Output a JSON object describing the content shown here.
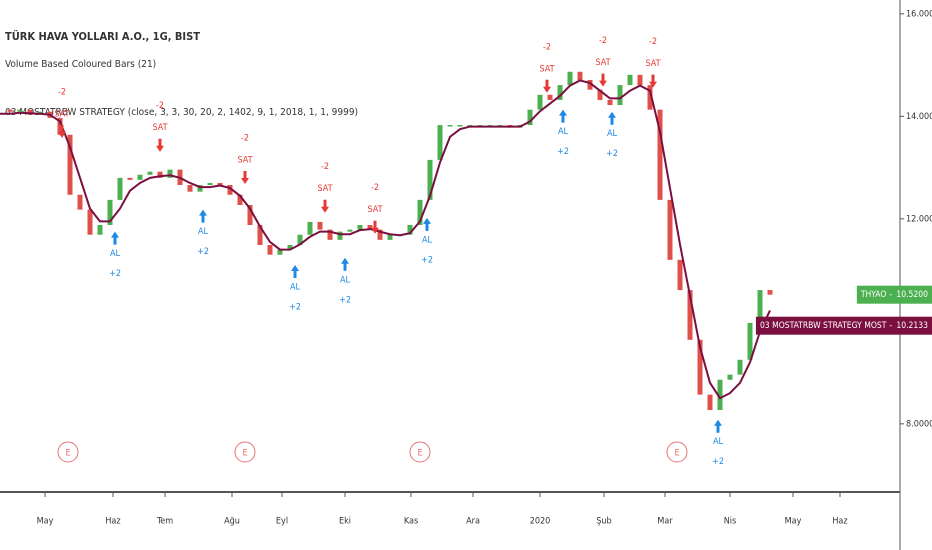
{
  "chart_data": {
    "type": "candlestick",
    "title": "TÜRK HAVA YOLLARI A.O., 1G, BIST",
    "subtitles": [
      "Volume Based Coloured Bars (21)",
      "03 MOSTATRBW STRATEGY (close, 3, 3, 30, 20, 2, 1402, 9, 1, 2018, 1, 1, 9999)"
    ],
    "x": [
      0,
      1,
      2,
      3,
      4,
      5,
      6,
      7,
      8,
      9,
      10,
      11,
      12,
      13,
      14,
      15,
      16,
      17,
      18,
      19,
      20,
      21,
      22,
      23,
      24,
      25,
      26,
      27,
      28,
      29,
      30,
      31,
      32,
      33,
      34,
      35,
      36,
      37,
      38,
      39,
      40,
      41,
      42,
      43,
      44,
      45,
      46,
      47,
      48,
      49,
      50,
      51,
      52,
      53,
      54,
      55,
      56,
      57,
      58,
      59,
      60,
      61,
      62,
      63,
      64,
      65,
      66,
      67,
      68,
      69,
      70,
      71,
      72,
      73,
      74,
      75,
      76,
      77
    ],
    "series": [
      {
        "name": "THYAO",
        "up_color": "#4caf50",
        "down_color": "#e0504a",
        "last_label": "10.5200",
        "values": [
          14.13,
          14.09,
          14.13,
          14.03,
          14.09,
          13.97,
          13.64,
          12.47,
          12.18,
          11.69,
          11.88,
          12.37,
          12.8,
          12.76,
          12.86,
          12.92,
          12.8,
          12.96,
          12.66,
          12.53,
          12.66,
          12.7,
          12.66,
          12.47,
          12.27,
          11.88,
          11.49,
          11.3,
          11.4,
          11.49,
          11.69,
          11.94,
          11.79,
          11.59,
          11.75,
          11.79,
          11.88,
          11.79,
          11.59,
          11.69,
          11.69,
          11.88,
          12.37,
          13.15,
          13.83,
          13.83,
          13.83,
          13.83,
          13.83,
          13.83,
          13.83,
          13.78,
          13.83,
          14.13,
          14.42,
          14.32,
          14.61,
          14.87,
          14.71,
          14.52,
          14.32,
          14.22,
          14.61,
          14.81,
          14.61,
          14.13,
          12.37,
          11.2,
          10.61,
          9.64,
          8.57,
          8.27,
          8.86,
          8.96,
          9.25,
          9.97,
          10.61,
          10.52
        ]
      },
      {
        "name": "03 MOSTATRBW STRATEGY MOST",
        "color": "#7b1040",
        "last_label": "10.2133",
        "values": [
          14.05,
          14.05,
          14.07,
          14.06,
          14.05,
          14.03,
          13.9,
          13.4,
          12.8,
          12.2,
          11.95,
          11.95,
          12.2,
          12.55,
          12.7,
          12.8,
          12.83,
          12.85,
          12.8,
          12.7,
          12.62,
          12.62,
          12.65,
          12.6,
          12.45,
          12.2,
          11.85,
          11.55,
          11.4,
          11.4,
          11.5,
          11.65,
          11.75,
          11.75,
          11.7,
          11.7,
          11.78,
          11.8,
          11.75,
          11.7,
          11.68,
          11.72,
          11.95,
          12.45,
          13.1,
          13.6,
          13.75,
          13.8,
          13.8,
          13.8,
          13.8,
          13.8,
          13.8,
          13.9,
          14.1,
          14.25,
          14.4,
          14.6,
          14.7,
          14.65,
          14.5,
          14.35,
          14.35,
          14.5,
          14.6,
          14.5,
          13.7,
          12.6,
          11.5,
          10.5,
          9.5,
          8.8,
          8.5,
          8.6,
          8.8,
          9.2,
          9.8,
          10.2133
        ]
      }
    ],
    "signals": [
      {
        "x": 6.2,
        "price": 13.58,
        "label": "SAT",
        "qty": "-2"
      },
      {
        "x": 11.5,
        "price": 11.75,
        "label": "AL",
        "qty": "+2"
      },
      {
        "x": 16.0,
        "price": 13.31,
        "label": "SAT",
        "qty": "-2"
      },
      {
        "x": 20.3,
        "price": 12.18,
        "label": "AL",
        "qty": "+2"
      },
      {
        "x": 24.5,
        "price": 12.68,
        "label": "SAT",
        "qty": "-2"
      },
      {
        "x": 29.5,
        "price": 11.1,
        "label": "AL",
        "qty": "+2"
      },
      {
        "x": 32.5,
        "price": 12.12,
        "label": "SAT",
        "qty": "-2"
      },
      {
        "x": 34.5,
        "price": 11.24,
        "label": "AL",
        "qty": "+2"
      },
      {
        "x": 37.5,
        "price": 11.71,
        "label": "SAT",
        "qty": "-2"
      },
      {
        "x": 42.7,
        "price": 12.02,
        "label": "AL",
        "qty": "+2"
      },
      {
        "x": 54.7,
        "price": 14.46,
        "label": "SAT",
        "qty": "-2"
      },
      {
        "x": 56.3,
        "price": 14.13,
        "label": "AL",
        "qty": "+2"
      },
      {
        "x": 60.3,
        "price": 14.58,
        "label": "SAT",
        "qty": "-2"
      },
      {
        "x": 61.2,
        "price": 14.09,
        "label": "AL",
        "qty": "+2"
      },
      {
        "x": 65.3,
        "price": 14.56,
        "label": "SAT",
        "qty": "-2"
      },
      {
        "x": 71.8,
        "price": 8.08,
        "label": "AL",
        "qty": "+2"
      }
    ],
    "events": [
      {
        "x": 6.8,
        "label": "E"
      },
      {
        "x": 24.5,
        "label": "E"
      },
      {
        "x": 42.0,
        "label": "E"
      },
      {
        "x": 67.7,
        "label": "E"
      }
    ],
    "xlim": [
      0,
      90
    ],
    "xticks": [
      {
        "value": 4.5,
        "label": "May"
      },
      {
        "value": 11.3,
        "label": "Haz"
      },
      {
        "value": 16.5,
        "label": "Tem"
      },
      {
        "value": 23.2,
        "label": "Ağu"
      },
      {
        "value": 28.2,
        "label": "Eyl"
      },
      {
        "value": 34.5,
        "label": "Eki"
      },
      {
        "value": 41.1,
        "label": "Kas"
      },
      {
        "value": 47.3,
        "label": "Ara"
      },
      {
        "value": 54.0,
        "label": "2020"
      },
      {
        "value": 60.4,
        "label": "Şub"
      },
      {
        "value": 66.5,
        "label": "Mar"
      },
      {
        "value": 73.0,
        "label": "Nis"
      },
      {
        "value": 79.3,
        "label": "May"
      },
      {
        "value": 84.0,
        "label": "Haz"
      }
    ],
    "ylim": [
      6.67,
      16.27
    ],
    "yticks": [
      {
        "value": 8,
        "label": "8.0000"
      },
      {
        "value": 12,
        "label": "12.0000"
      },
      {
        "value": 14,
        "label": "14.0000"
      },
      {
        "value": 16,
        "label": "16.0000"
      }
    ]
  }
}
